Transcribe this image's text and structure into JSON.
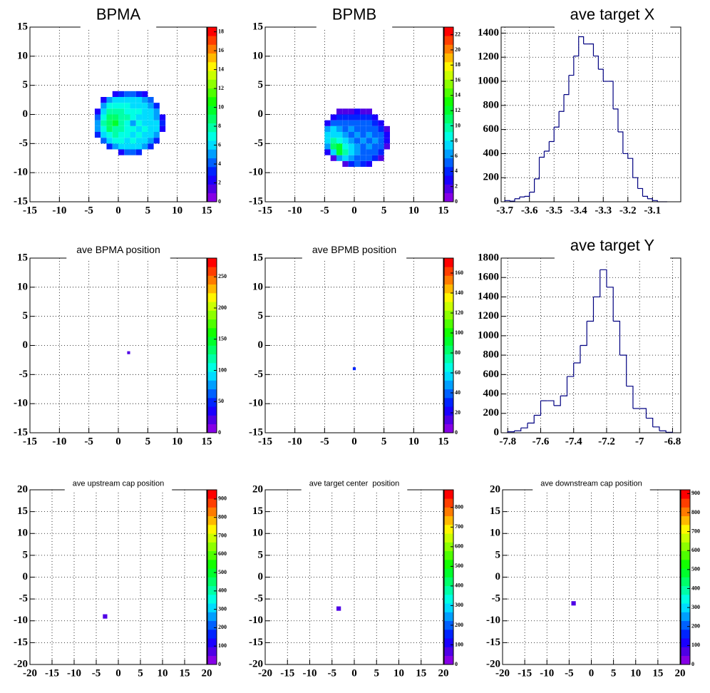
{
  "chart_data": [
    {
      "type": "heatmap",
      "title": "BPMA",
      "palette": "rainbow",
      "grid": true,
      "xlim": [
        -15,
        15
      ],
      "xticks": [
        -15,
        -10,
        -5,
        0,
        5,
        10,
        15
      ],
      "ylim": [
        -15,
        15
      ],
      "yticks": [
        -15,
        -10,
        -5,
        0,
        5,
        10,
        15
      ],
      "zlim": [
        0,
        18.5
      ],
      "zticks": [
        0,
        2,
        4,
        6,
        8,
        10,
        12,
        14,
        16,
        18
      ],
      "xbins": [
        -4,
        -3,
        -2,
        -1,
        0,
        1,
        2,
        3,
        4,
        5,
        6,
        7,
        8
      ],
      "ybins": [
        -7,
        -6,
        -5,
        -4,
        -3,
        -2,
        -1,
        0,
        1,
        2,
        3,
        4
      ],
      "z": [
        [
          0,
          0,
          0,
          0,
          2,
          4,
          4,
          3,
          0,
          0,
          0,
          0
        ],
        [
          0,
          0,
          3,
          5,
          6,
          6,
          6,
          6,
          5,
          3,
          0,
          0
        ],
        [
          0,
          4,
          6,
          7,
          7,
          6,
          7,
          6,
          6,
          5,
          3,
          0
        ],
        [
          3,
          6,
          7,
          8,
          7,
          7,
          6,
          7,
          6,
          6,
          5,
          0
        ],
        [
          5,
          7,
          9,
          8,
          8,
          7,
          7,
          6,
          7,
          6,
          6,
          2
        ],
        [
          5,
          8,
          9,
          10,
          8,
          7,
          5,
          7,
          6,
          6,
          6,
          3
        ],
        [
          4,
          7,
          9,
          9,
          8,
          8,
          7,
          6,
          6,
          6,
          5,
          2
        ],
        [
          2,
          6,
          8,
          8,
          8,
          7,
          7,
          7,
          6,
          6,
          5,
          0
        ],
        [
          0,
          5,
          7,
          7,
          7,
          7,
          6,
          6,
          6,
          5,
          3,
          0
        ],
        [
          0,
          2,
          5,
          6,
          6,
          6,
          6,
          6,
          5,
          4,
          0,
          0
        ],
        [
          0,
          0,
          0,
          2,
          3,
          4,
          4,
          3,
          2,
          0,
          0,
          0
        ]
      ]
    },
    {
      "type": "heatmap",
      "title": "BPMB",
      "palette": "rainbow",
      "grid": true,
      "xlim": [
        -15,
        15
      ],
      "xticks": [
        -15,
        -10,
        -5,
        0,
        5,
        10,
        15
      ],
      "ylim": [
        -15,
        15
      ],
      "yticks": [
        -15,
        -10,
        -5,
        0,
        5,
        10,
        15
      ],
      "zlim": [
        0,
        23
      ],
      "zticks": [
        0,
        2,
        4,
        6,
        8,
        10,
        12,
        14,
        16,
        18,
        20,
        22
      ],
      "xbins": [
        -5,
        -4,
        -3,
        -2,
        -1,
        0,
        1,
        2,
        3,
        4,
        5,
        6
      ],
      "ybins": [
        -9,
        -8,
        -7,
        -6,
        -5,
        -4,
        -3,
        -2,
        -1,
        0,
        1
      ],
      "z": [
        [
          0,
          0,
          0,
          2,
          4,
          5,
          4,
          3,
          0,
          0,
          0
        ],
        [
          0,
          2,
          6,
          8,
          6,
          5,
          5,
          5,
          4,
          2,
          0
        ],
        [
          3,
          8,
          12,
          10,
          7,
          6,
          5,
          5,
          5,
          4,
          0
        ],
        [
          6,
          11,
          12,
          9,
          7,
          6,
          5,
          6,
          5,
          5,
          2
        ],
        [
          7,
          10,
          9,
          7,
          6,
          5,
          6,
          5,
          6,
          5,
          3
        ],
        [
          7,
          8,
          7,
          6,
          5,
          6,
          5,
          6,
          5,
          5,
          3
        ],
        [
          6,
          7,
          6,
          5,
          6,
          5,
          5,
          5,
          5,
          4,
          2
        ],
        [
          3,
          5,
          5,
          5,
          5,
          5,
          5,
          5,
          4,
          3,
          0
        ],
        [
          0,
          3,
          4,
          4,
          4,
          4,
          4,
          4,
          3,
          0,
          0
        ],
        [
          0,
          0,
          2,
          2,
          2,
          3,
          2,
          2,
          0,
          0,
          0
        ]
      ]
    },
    {
      "type": "histogram",
      "title": "ave target X",
      "color": "#000080",
      "grid": true,
      "xlim": [
        -3.715,
        -2.985
      ],
      "xticks": [
        -3.7,
        -3.6,
        -3.5,
        -3.4,
        -3.3,
        -3.2,
        -3.1
      ],
      "ylim": [
        0,
        1450
      ],
      "yticks": [
        0,
        200,
        400,
        600,
        800,
        1000,
        1200,
        1400
      ],
      "bins": [
        -3.7,
        -3.68,
        -3.66,
        -3.64,
        -3.62,
        -3.6,
        -3.58,
        -3.56,
        -3.54,
        -3.52,
        -3.5,
        -3.48,
        -3.46,
        -3.44,
        -3.42,
        -3.4,
        -3.38,
        -3.36,
        -3.34,
        -3.32,
        -3.3,
        -3.28,
        -3.26,
        -3.24,
        -3.22,
        -3.2,
        -3.18,
        -3.16,
        -3.14,
        -3.12,
        -3.1,
        -3.08,
        -3.06,
        -3.04
      ],
      "values": [
        10,
        5,
        25,
        40,
        45,
        80,
        190,
        370,
        420,
        500,
        620,
        750,
        890,
        1050,
        1210,
        1370,
        1310,
        1310,
        1210,
        1100,
        1000,
        1000,
        770,
        580,
        400,
        360,
        200,
        110,
        45,
        25,
        10,
        0,
        0
      ]
    },
    {
      "type": "heatmap",
      "title": "ave BPMA position",
      "palette": "rainbow",
      "grid": true,
      "xlim": [
        -15,
        15
      ],
      "xticks": [
        -15,
        -10,
        -5,
        0,
        5,
        10,
        15
      ],
      "ylim": [
        -15,
        15
      ],
      "yticks": [
        -15,
        -10,
        -5,
        0,
        5,
        10,
        15
      ],
      "zlim": [
        0,
        280
      ],
      "zticks": [
        0,
        50,
        100,
        150,
        200,
        250
      ],
      "xbins": [
        1.5,
        2
      ],
      "ybins": [
        -1.5,
        -1
      ],
      "z": [
        [
          25
        ]
      ]
    },
    {
      "type": "heatmap",
      "title": "ave BPMB position",
      "palette": "rainbow",
      "grid": true,
      "xlim": [
        -15,
        15
      ],
      "xticks": [
        -15,
        -10,
        -5,
        0,
        5,
        10,
        15
      ],
      "ylim": [
        -15,
        15
      ],
      "yticks": [
        -15,
        -10,
        -5,
        0,
        5,
        10,
        15
      ],
      "zlim": [
        0,
        175
      ],
      "zticks": [
        0,
        20,
        40,
        60,
        80,
        100,
        120,
        140,
        160
      ],
      "xbins": [
        -0.25,
        0.25
      ],
      "ybins": [
        -4.25,
        -3.75
      ],
      "z": [
        [
          30
        ]
      ]
    },
    {
      "type": "histogram",
      "title": "ave target Y",
      "color": "#000080",
      "grid": true,
      "xlim": [
        -7.84,
        -6.75
      ],
      "xticks": [
        -7.8,
        -7.6,
        -7.4,
        -7.2,
        -7,
        -6.8
      ],
      "ylim": [
        0,
        1800
      ],
      "yticks": [
        0,
        200,
        400,
        600,
        800,
        1000,
        1200,
        1400,
        1600,
        1800
      ],
      "bins": [
        -7.8,
        -7.76,
        -7.72,
        -7.68,
        -7.64,
        -7.6,
        -7.56,
        -7.52,
        -7.48,
        -7.44,
        -7.4,
        -7.36,
        -7.32,
        -7.28,
        -7.24,
        -7.2,
        -7.16,
        -7.12,
        -7.08,
        -7.04,
        -7,
        -6.96,
        -6.92,
        -6.88,
        -6.84,
        -6.8
      ],
      "values": [
        10,
        20,
        50,
        100,
        180,
        330,
        330,
        280,
        380,
        580,
        720,
        900,
        1150,
        1400,
        1680,
        1500,
        1150,
        800,
        480,
        250,
        250,
        150,
        60,
        20,
        5
      ]
    },
    {
      "type": "heatmap",
      "title": "ave upstream cap position",
      "palette": "rainbow",
      "grid": true,
      "xlim": [
        -20,
        20
      ],
      "xticks": [
        -20,
        -15,
        -10,
        -5,
        0,
        5,
        10,
        15,
        20
      ],
      "ylim": [
        -20,
        20
      ],
      "yticks": [
        -20,
        -15,
        -10,
        -5,
        0,
        5,
        10,
        15,
        20
      ],
      "zlim": [
        0,
        950
      ],
      "zticks": [
        0,
        100,
        200,
        300,
        400,
        500,
        600,
        700,
        800,
        900
      ],
      "xbins": [
        -3.5,
        -2.5
      ],
      "ybins": [
        -9.5,
        -8.5
      ],
      "z": [
        [
          60
        ]
      ]
    },
    {
      "type": "heatmap",
      "title": "ave target center  position",
      "palette": "rainbow",
      "grid": true,
      "xlim": [
        -20,
        20
      ],
      "xticks": [
        -20,
        -15,
        -10,
        -5,
        0,
        5,
        10,
        15,
        20
      ],
      "ylim": [
        -20,
        20
      ],
      "yticks": [
        -20,
        -15,
        -10,
        -5,
        0,
        5,
        10,
        15,
        20
      ],
      "zlim": [
        0,
        890
      ],
      "zticks": [
        0,
        100,
        200,
        300,
        400,
        500,
        600,
        700,
        800
      ],
      "xbins": [
        -4,
        -3
      ],
      "ybins": [
        -7.7,
        -6.7
      ],
      "z": [
        [
          50
        ]
      ]
    },
    {
      "type": "heatmap",
      "title": "ave downstream cap position",
      "palette": "rainbow",
      "grid": true,
      "xlim": [
        -20,
        20
      ],
      "xticks": [
        -20,
        -15,
        -10,
        -5,
        0,
        5,
        10,
        15,
        20
      ],
      "ylim": [
        -20,
        20
      ],
      "yticks": [
        -20,
        -15,
        -10,
        -5,
        0,
        5,
        10,
        15,
        20
      ],
      "zlim": [
        0,
        920
      ],
      "zticks": [
        0,
        100,
        200,
        300,
        400,
        500,
        600,
        700,
        800,
        900
      ],
      "xbins": [
        -4.5,
        -3.5
      ],
      "ybins": [
        -6.5,
        -5.5
      ],
      "z": [
        [
          60
        ]
      ]
    }
  ]
}
